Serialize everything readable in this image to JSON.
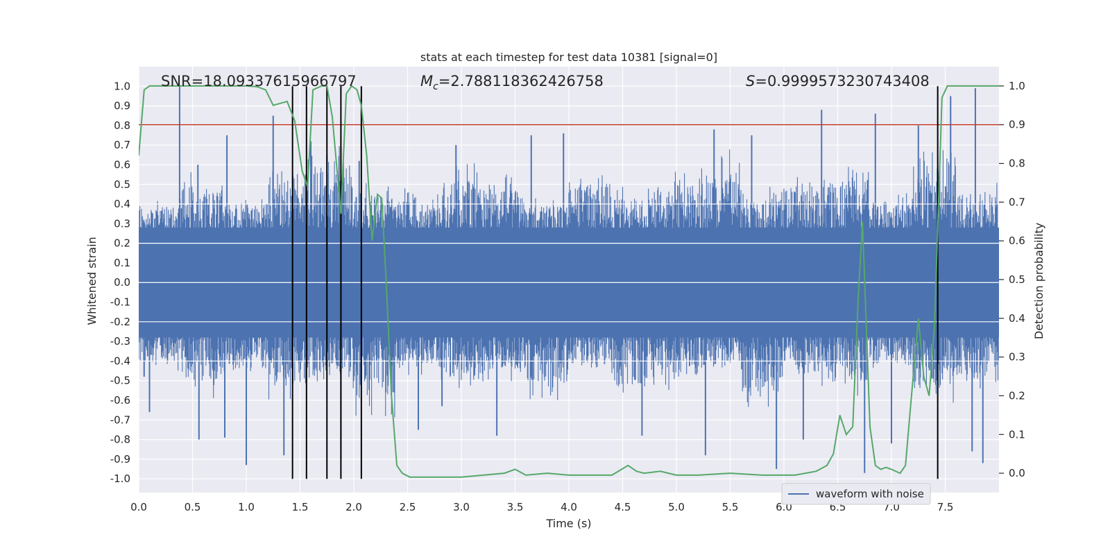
{
  "chart_data": {
    "type": "line",
    "title": "stats at each timestep for test data 10381 [signal=0]",
    "xlabel": "Time (s)",
    "ylabel": "Whitened strain",
    "y2label": "Detection probability",
    "xlim": [
      0.0,
      8.0
    ],
    "ylim": [
      -1.07,
      1.1
    ],
    "y2lim": [
      -0.05,
      1.05
    ],
    "xticks": [
      0.0,
      0.5,
      1.0,
      1.5,
      2.0,
      2.5,
      3.0,
      3.5,
      4.0,
      4.5,
      5.0,
      5.5,
      6.0,
      6.5,
      7.0,
      7.5
    ],
    "xtick_labels": [
      "0.0",
      "0.5",
      "1.0",
      "1.5",
      "2.0",
      "2.5",
      "3.0",
      "3.5",
      "4.0",
      "4.5",
      "5.0",
      "5.5",
      "6.0",
      "6.5",
      "7.0",
      "7.5"
    ],
    "yticks": [
      1.0,
      0.9,
      0.8,
      0.7,
      0.6,
      0.5,
      0.4,
      0.3,
      0.2,
      0.1,
      0.0,
      -0.1,
      -0.2,
      -0.3,
      -0.4,
      -0.5,
      -0.6,
      -0.7,
      -0.8,
      -0.9,
      -1.0
    ],
    "ytick_labels": [
      "1.0",
      "0.9",
      "0.8",
      "0.7",
      "0.6",
      "0.5",
      "0.4",
      "0.3",
      "0.2",
      "0.1",
      "0.0",
      "-0.1",
      "-0.2",
      "-0.3",
      "-0.4",
      "-0.5",
      "-0.6",
      "-0.7",
      "-0.8",
      "-0.9",
      "-1.0"
    ],
    "y2ticks": [
      1.0,
      0.9,
      0.8,
      0.7,
      0.6,
      0.5,
      0.4,
      0.3,
      0.2,
      0.1,
      0.0
    ],
    "y2tick_labels": [
      "1.0",
      "0.9",
      "0.8",
      "0.7",
      "0.6",
      "0.5",
      "0.4",
      "0.3",
      "0.2",
      "0.1",
      "0.0"
    ],
    "grid": true,
    "annotations": {
      "snr": "SNR=18.09337615966797",
      "mc_symbol": "M",
      "mc_sub": "c",
      "mc_value": "=2.788118362426758",
      "s_symbol": "S",
      "s_value": "=0.9999573230743408"
    },
    "threshold": {
      "value": 0.9,
      "axis": "y2",
      "color": "#c0392b"
    },
    "event_lines": [
      1.43,
      1.56,
      1.75,
      1.88,
      2.07,
      7.43
    ],
    "waveform": {
      "name": "waveform with noise",
      "color": "#4c72b0",
      "envelope_upper": [
        0.43,
        0.58,
        0.45,
        0.66,
        0.72,
        0.52,
        0.48,
        0.61,
        0.55,
        0.44,
        0.6,
        0.5,
        0.58,
        0.68,
        0.49,
        0.57,
        0.63,
        0.46,
        0.71,
        0.52
      ],
      "envelope_lower": [
        -0.45,
        -0.6,
        -0.5,
        -0.62,
        -0.55,
        -0.7,
        -0.48,
        -0.58,
        -0.52,
        -0.6,
        -0.47,
        -0.63,
        -0.56,
        -0.5,
        -0.66,
        -0.54,
        -0.59,
        -0.48,
        -0.64,
        -0.55
      ],
      "spikes_up": [
        [
          0.38,
          1.0
        ],
        [
          0.55,
          0.6
        ],
        [
          0.82,
          0.75
        ],
        [
          1.25,
          0.85
        ],
        [
          1.6,
          0.72
        ],
        [
          1.75,
          0.65
        ],
        [
          2.05,
          0.62
        ],
        [
          2.95,
          0.7
        ],
        [
          3.65,
          0.75
        ],
        [
          3.95,
          0.76
        ],
        [
          5.35,
          0.78
        ],
        [
          5.7,
          0.75
        ],
        [
          6.35,
          0.88
        ],
        [
          6.85,
          0.86
        ],
        [
          7.25,
          0.8
        ],
        [
          7.55,
          0.95
        ],
        [
          7.78,
          0.99
        ]
      ],
      "spikes_down": [
        [
          0.05,
          -0.48
        ],
        [
          0.1,
          -0.66
        ],
        [
          0.56,
          -0.8
        ],
        [
          0.8,
          -0.79
        ],
        [
          1.0,
          -0.93
        ],
        [
          1.35,
          -0.88
        ],
        [
          1.88,
          -0.9
        ],
        [
          2.6,
          -0.75
        ],
        [
          2.82,
          -0.63
        ],
        [
          3.33,
          -0.78
        ],
        [
          4.68,
          -0.78
        ],
        [
          5.27,
          -0.88
        ],
        [
          5.93,
          -0.95
        ],
        [
          6.18,
          -0.8
        ],
        [
          6.75,
          -0.97
        ],
        [
          7.0,
          -0.82
        ],
        [
          7.75,
          -0.86
        ],
        [
          7.85,
          -0.92
        ]
      ]
    },
    "detection": {
      "name": "detection probability",
      "color": "#55a868",
      "x": [
        0.0,
        0.05,
        0.1,
        0.2,
        0.4,
        0.6,
        0.8,
        1.0,
        1.1,
        1.18,
        1.25,
        1.38,
        1.45,
        1.52,
        1.57,
        1.62,
        1.7,
        1.75,
        1.8,
        1.88,
        1.93,
        1.98,
        2.03,
        2.07,
        2.12,
        2.17,
        2.22,
        2.26,
        2.3,
        2.35,
        2.4,
        2.45,
        2.52,
        2.7,
        3.0,
        3.4,
        3.5,
        3.6,
        3.8,
        4.0,
        4.4,
        4.55,
        4.63,
        4.7,
        4.85,
        5.0,
        5.2,
        5.5,
        5.8,
        6.1,
        6.3,
        6.4,
        6.46,
        6.52,
        6.58,
        6.64,
        6.69,
        6.73,
        6.8,
        6.85,
        6.9,
        6.95,
        7.0,
        7.08,
        7.13,
        7.18,
        7.25,
        7.3,
        7.35,
        7.4,
        7.47,
        7.52,
        7.57,
        7.65,
        8.0
      ],
      "y": [
        0.82,
        0.99,
        1.0,
        1.0,
        1.0,
        1.0,
        1.0,
        1.0,
        0.998,
        0.99,
        0.95,
        0.96,
        0.91,
        0.78,
        0.74,
        0.99,
        1.0,
        1.0,
        0.92,
        0.67,
        0.98,
        1.0,
        0.99,
        0.95,
        0.82,
        0.6,
        0.72,
        0.71,
        0.5,
        0.2,
        0.02,
        0.0,
        -0.01,
        -0.01,
        -0.01,
        0.0,
        0.01,
        -0.005,
        0.0,
        -0.005,
        -0.005,
        0.02,
        0.005,
        0.0,
        0.005,
        -0.005,
        -0.005,
        0.0,
        -0.005,
        -0.005,
        0.005,
        0.02,
        0.05,
        0.15,
        0.1,
        0.12,
        0.45,
        0.65,
        0.12,
        0.02,
        0.01,
        0.015,
        0.01,
        0.0,
        0.02,
        0.18,
        0.4,
        0.25,
        0.2,
        0.38,
        0.97,
        1.0,
        1.0,
        1.0,
        1.0
      ]
    },
    "legend": {
      "label": "waveform with noise",
      "placement": "lower-right"
    }
  }
}
